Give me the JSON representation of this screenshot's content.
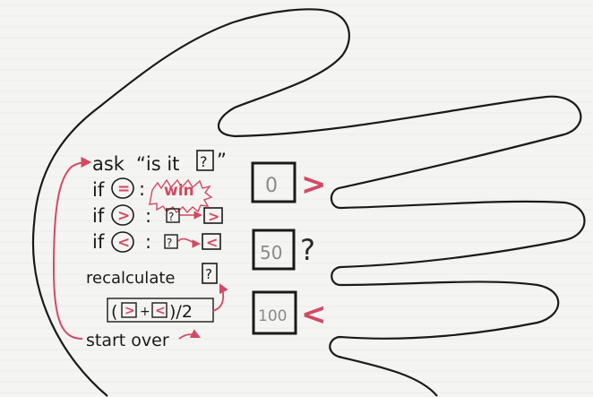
{
  "steps": {
    "ask": "ask",
    "ask_quote": "“is it",
    "ask_mark": "?",
    "ask_close": "”",
    "if1": "if",
    "if1_cond": "=",
    "if1_colon": ":",
    "if1_result": "win",
    "if2": "if",
    "if2_cond": ">",
    "if2_colon": ":",
    "if2_from": "?",
    "if2_to": ">",
    "if3": "if",
    "if3_cond": "<",
    "if3_colon": ":",
    "if3_from": "?",
    "if3_to": "<",
    "recalc": "recalculate",
    "recalc_mark": "?",
    "formula_open": "(",
    "formula_gt": ">",
    "formula_plus": "+",
    "formula_lt": "<",
    "formula_close": ")/2",
    "start_over": "start over"
  },
  "boxes": {
    "top_value": "0",
    "top_label": ">",
    "mid_value": "50",
    "mid_label": "?",
    "bot_value": "100",
    "bot_label": "<"
  },
  "colors": {
    "ink": "#1a1a1a",
    "accent": "#d24a62",
    "paper": "#f4f4f2"
  }
}
